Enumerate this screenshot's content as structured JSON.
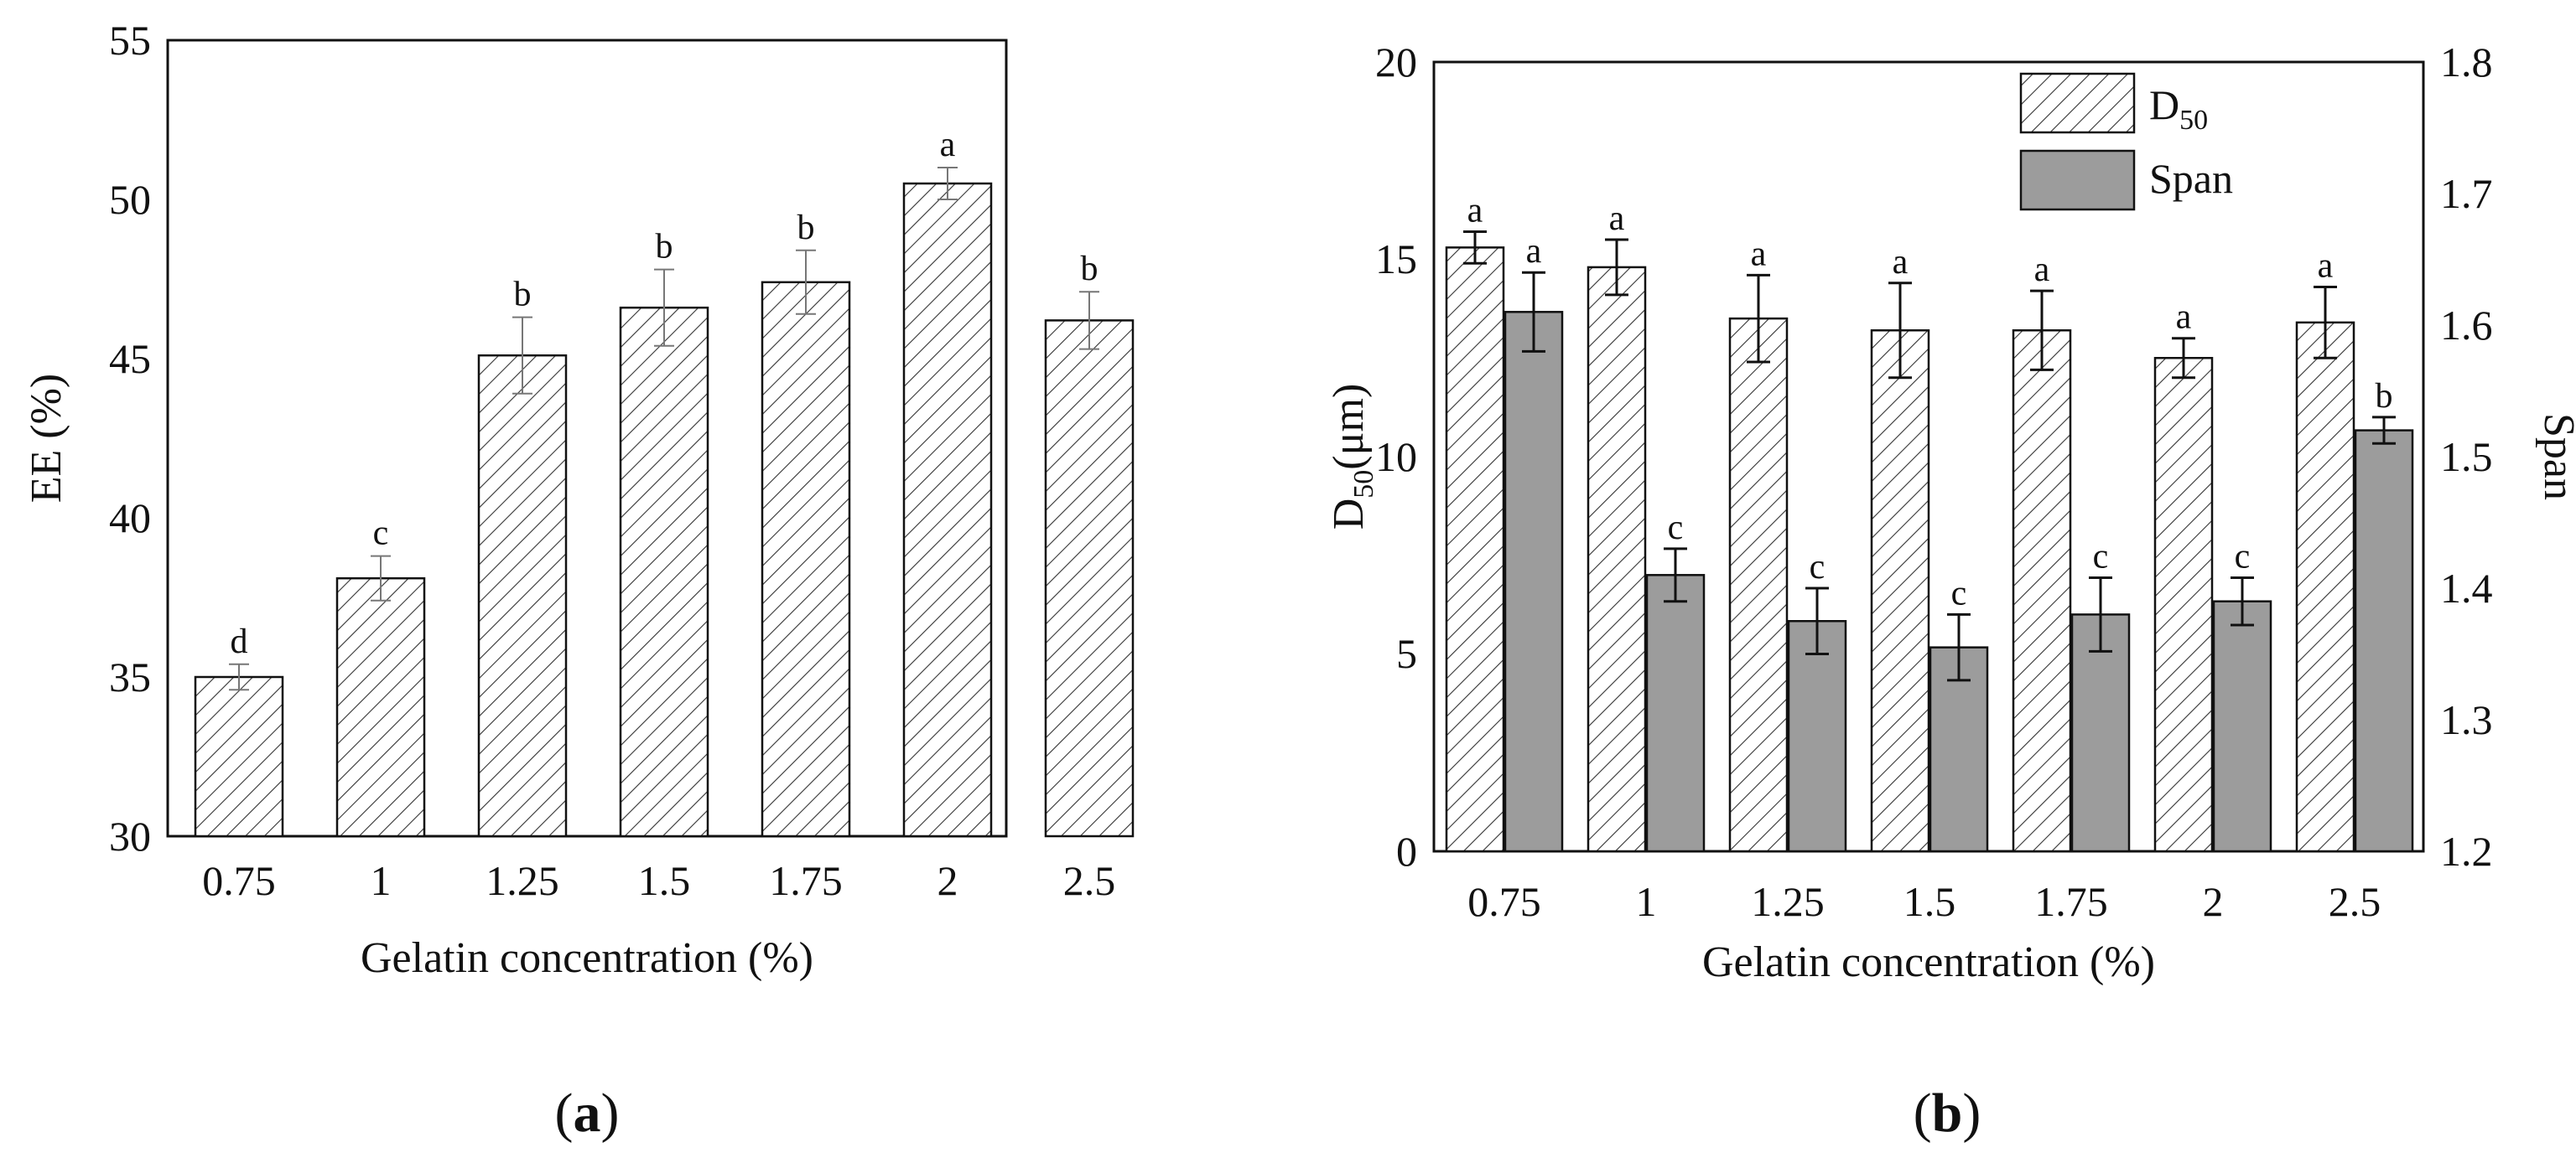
{
  "chart_data": [
    {
      "type": "bar",
      "panel_label": {
        "open": "(",
        "letter": "a",
        "close": ")"
      },
      "categories": [
        "0.75",
        "1",
        "1.25",
        "1.5",
        "1.75",
        "2",
        "2.5"
      ],
      "series": [
        {
          "name": "EE",
          "values": [
            35.0,
            38.1,
            45.1,
            46.6,
            47.4,
            50.5,
            46.2
          ],
          "errors": [
            0.4,
            0.7,
            1.2,
            1.2,
            1.0,
            0.5,
            0.9
          ],
          "letters": [
            "d",
            "c",
            "b",
            "b",
            "b",
            "a",
            "b"
          ],
          "pattern": "hatch",
          "axis": "left"
        }
      ],
      "xlabel": "Gelatin concentration (%)",
      "ylabel": "EE (%)",
      "ylim": [
        30,
        55
      ],
      "yticks": [
        "30",
        "35",
        "40",
        "45",
        "50",
        "55"
      ],
      "grid": false
    },
    {
      "type": "bar",
      "panel_label": {
        "open": "(",
        "letter": "b",
        "close": ")"
      },
      "categories": [
        "0.75",
        "1",
        "1.25",
        "1.5",
        "1.75",
        "2",
        "2.5"
      ],
      "series": [
        {
          "name": "D50",
          "values": [
            15.3,
            14.8,
            13.5,
            13.2,
            13.2,
            12.5,
            13.4
          ],
          "errors": [
            0.4,
            0.7,
            1.1,
            1.2,
            1.0,
            0.5,
            0.9
          ],
          "letters": [
            "a",
            "a",
            "a",
            "a",
            "a",
            "a",
            "a"
          ],
          "pattern": "hatch",
          "axis": "left"
        },
        {
          "name": "Span",
          "values": [
            1.61,
            1.41,
            1.375,
            1.355,
            1.38,
            1.39,
            1.52
          ],
          "errors": [
            0.03,
            0.02,
            0.025,
            0.025,
            0.028,
            0.018,
            0.01
          ],
          "letters": [
            "a",
            "c",
            "c",
            "c",
            "c",
            "c",
            "b"
          ],
          "pattern": "solid",
          "color": "#9c9c9c",
          "axis": "right"
        }
      ],
      "legend": {
        "position": "top-right",
        "entries": [
          {
            "main": "D",
            "sub": "50"
          },
          {
            "main": "Span",
            "sub": ""
          }
        ]
      },
      "xlabel": "Gelatin concentration (%)",
      "ylabel": {
        "main": "D",
        "sub": "50",
        "rest": "(μm)"
      },
      "y2label": "Span",
      "ylim": [
        0,
        20
      ],
      "yticks": [
        "0",
        "5",
        "10",
        "15",
        "20"
      ],
      "y2lim": [
        1.2,
        1.8
      ],
      "y2ticks": [
        "1.2",
        "1.3",
        "1.4",
        "1.5",
        "1.6",
        "1.7",
        "1.8"
      ],
      "grid": false
    }
  ]
}
